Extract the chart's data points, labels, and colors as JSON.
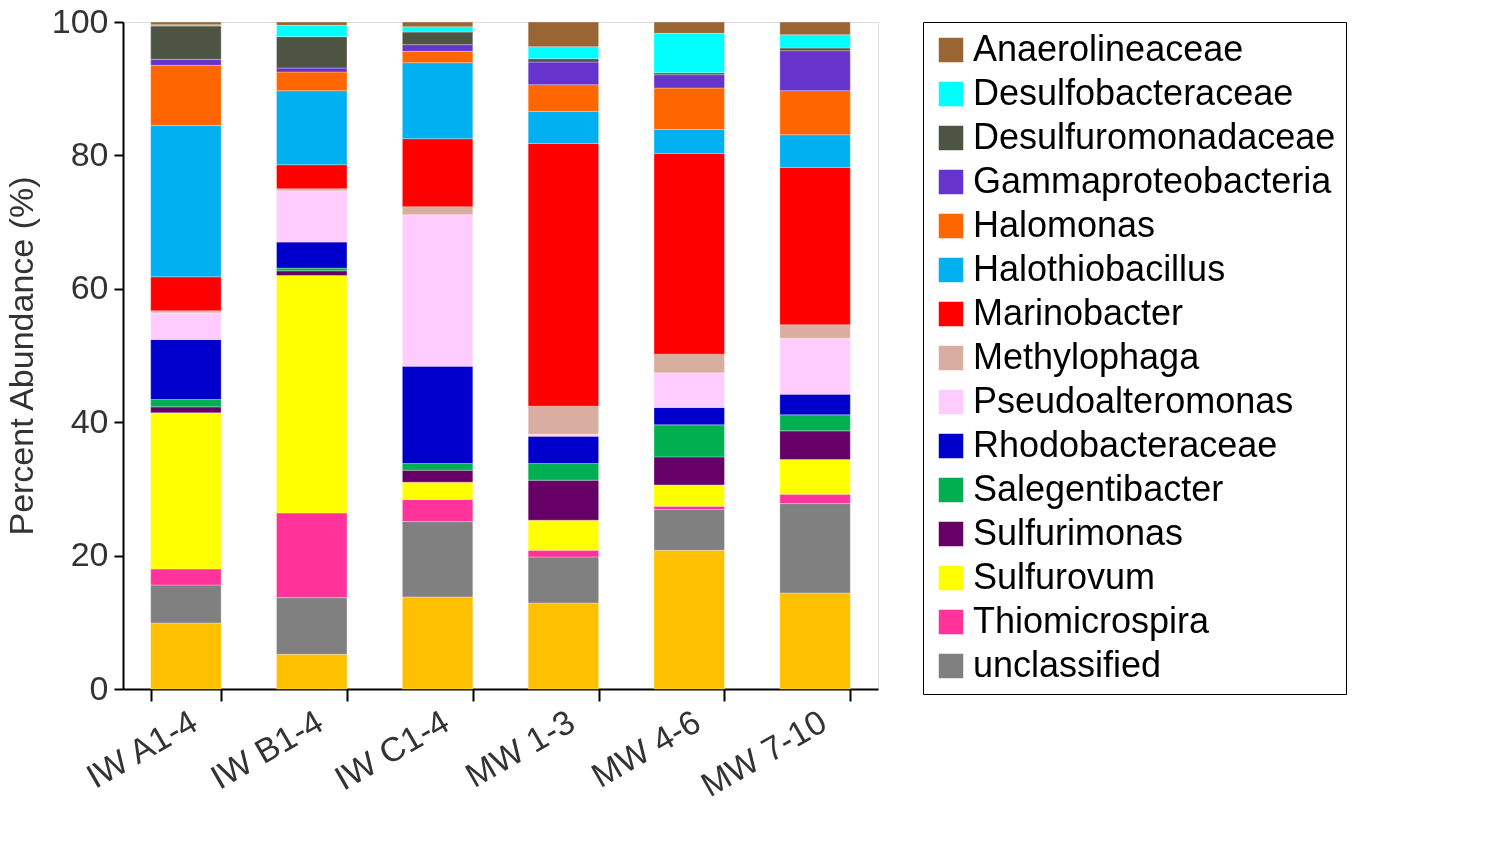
{
  "chart_data": {
    "type": "bar",
    "stacked": true,
    "ylabel": "Percent Abundance (%)",
    "categories": [
      "IW A1-4",
      "IW B1-4",
      "IW C1-4",
      "MW 1-3",
      "MW 4-6",
      "MW 7-10"
    ],
    "ylim": [
      0,
      100
    ],
    "yticks": [
      0,
      20,
      40,
      60,
      80,
      100
    ],
    "grid": false,
    "legend": "right",
    "series": [
      {
        "color": "#ffc000",
        "values": [
          9.9,
          5.2,
          13.8,
          12.9,
          20.8,
          14.4
        ]
      },
      {
        "name": "unclassified",
        "color": "#808080",
        "values": [
          5.7,
          8.5,
          11.3,
          6.9,
          6.1,
          13.4
        ]
      },
      {
        "name": "Thiomicrospira",
        "color": "#ff3399",
        "values": [
          2.4,
          12.7,
          3.3,
          1.0,
          0.5,
          1.4
        ]
      },
      {
        "name": "Sulfurovum",
        "color": "#ffff00",
        "values": [
          23.4,
          35.6,
          2.6,
          4.5,
          3.2,
          5.2
        ]
      },
      {
        "name": "Sulfurimonas",
        "color": "#660066",
        "values": [
          0.9,
          0.7,
          1.8,
          6.0,
          4.2,
          4.3
        ]
      },
      {
        "name": "Salegentibacter",
        "color": "#00b050",
        "values": [
          1.1,
          0.4,
          1.0,
          2.5,
          4.8,
          2.4
        ]
      },
      {
        "name": "Rhodobacteraceae",
        "color": "#0000cc",
        "values": [
          9.0,
          3.9,
          14.6,
          4.1,
          2.6,
          3.1
        ]
      },
      {
        "name": "Pseudoalteromonas",
        "color": "#ffccff",
        "values": [
          4.0,
          7.7,
          22.7,
          0.3,
          5.2,
          8.4
        ]
      },
      {
        "name": "Methylophaga",
        "color": "#d9ada0",
        "values": [
          0.3,
          0.3,
          1.2,
          4.2,
          2.8,
          2.0
        ]
      },
      {
        "name": "Marinobacter",
        "color": "#ff0000",
        "values": [
          5.1,
          3.6,
          10.2,
          39.4,
          30.1,
          23.6
        ]
      },
      {
        "name": "Halothiobacillus",
        "color": "#00b0f0",
        "values": [
          22.7,
          11.1,
          11.4,
          4.8,
          3.6,
          4.9
        ]
      },
      {
        "name": "Halomonas",
        "color": "#ff6600",
        "values": [
          9.0,
          2.8,
          1.7,
          4.0,
          6.2,
          6.6
        ]
      },
      {
        "name": "Gammaproteobacteria",
        "color": "#6633cc",
        "values": [
          0.9,
          0.6,
          1.0,
          3.4,
          2.0,
          6.0
        ]
      },
      {
        "name": "Desulfuromonadaceae",
        "color": "#4e5444",
        "values": [
          5.0,
          4.7,
          1.9,
          0.5,
          0.3,
          0.4
        ]
      },
      {
        "name": "Desulfobacteraceae",
        "color": "#00ffff",
        "values": [
          0.2,
          1.7,
          0.8,
          1.8,
          5.9,
          2.0
        ]
      },
      {
        "name": "Anaerolineaceae",
        "color": "#996633",
        "values": [
          0.4,
          0.5,
          0.7,
          3.7,
          1.7,
          1.9
        ]
      }
    ]
  }
}
